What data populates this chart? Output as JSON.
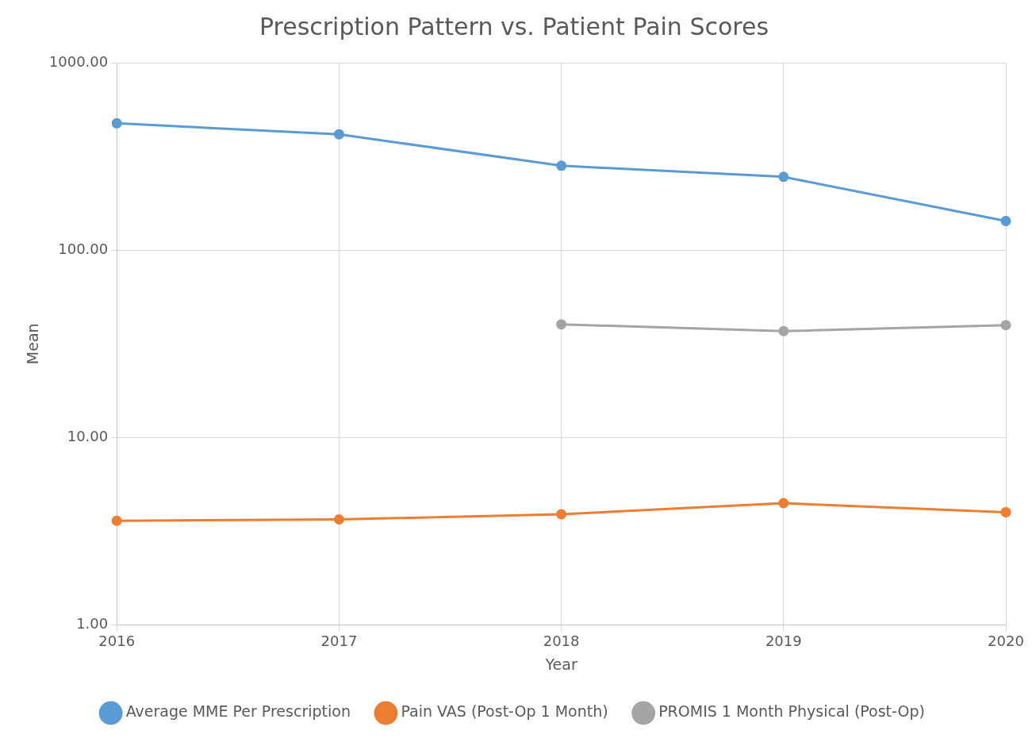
{
  "chart_data": {
    "type": "line",
    "title": "Prescription Pattern vs. Patient Pain Scores",
    "xlabel": "Year",
    "ylabel": "Mean",
    "categories": [
      "2016",
      "2017",
      "2018",
      "2019",
      "2020"
    ],
    "series": [
      {
        "name": "Average MME Per Prescription",
        "color": "#5b9bd5",
        "values": [
          475,
          415,
          282,
          246,
          143
        ]
      },
      {
        "name": "Pain VAS (Post-Op 1 Month)",
        "color": "#ed7d31",
        "values": [
          3.6,
          3.66,
          3.9,
          4.47,
          4.0
        ]
      },
      {
        "name": "PROMIS 1 Month Physical (Post-Op)",
        "color": "#a5a5a5",
        "values": [
          null,
          null,
          40.2,
          37,
          39.8
        ]
      }
    ],
    "log": "y",
    "ylim": [
      1,
      1000
    ],
    "yticks": [
      {
        "value": 1,
        "label": "1.00"
      },
      {
        "value": 10,
        "label": "10.00"
      },
      {
        "value": 100,
        "label": "100.00"
      },
      {
        "value": 1000,
        "label": "1000.00"
      }
    ],
    "grid": true,
    "legend": "bottom",
    "marker": "circle",
    "line_style": "solid"
  }
}
